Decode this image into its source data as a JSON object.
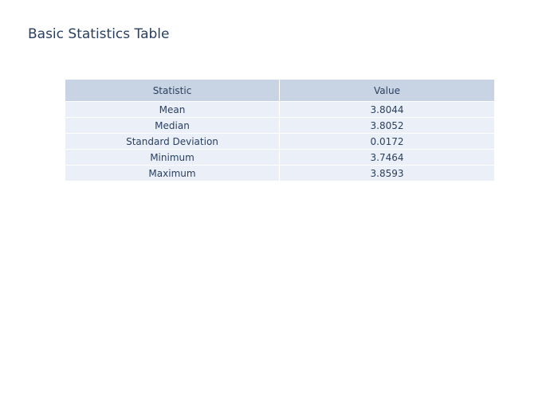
{
  "chart_data": {
    "type": "table",
    "title": "Basic Statistics Table",
    "columns": [
      "Statistic",
      "Value"
    ],
    "rows": [
      [
        "Mean",
        "3.8044"
      ],
      [
        "Median",
        "3.8052"
      ],
      [
        "Standard Deviation",
        "0.0172"
      ],
      [
        "Minimum",
        "3.7464"
      ],
      [
        "Maximum",
        "3.8593"
      ]
    ]
  },
  "colors": {
    "header_fill": "#c8d4e3",
    "cell_fill": "#ebf0f8",
    "text": "#2a3f5f",
    "border": "#ffffff"
  }
}
